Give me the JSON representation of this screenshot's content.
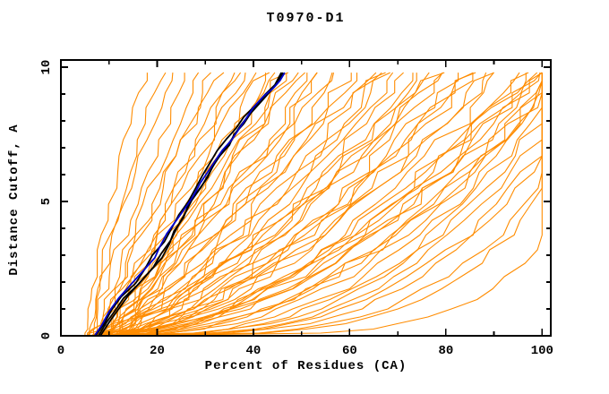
{
  "chart_data": {
    "type": "line",
    "title": "T0970-D1",
    "xlabel": "Percent of Residues (CA)",
    "ylabel": "Distance Cutoff, A",
    "xlim": [
      0,
      101.8
    ],
    "ylim": [
      0,
      10.27
    ],
    "x_major_ticks": [
      0,
      20,
      40,
      60,
      80,
      100
    ],
    "x_minor_ticks": [
      10,
      30,
      50,
      70,
      90
    ],
    "y_major_ticks": [
      0,
      5,
      10
    ],
    "y_minor_ticks": [
      1,
      2,
      3,
      4,
      6,
      7,
      8,
      9
    ],
    "grid": false,
    "legend": "none",
    "cutoff_plot_max": 9.8,
    "colors": {
      "server_models": "#ff8c00",
      "highlight_blue": "#0000cd",
      "highlight_black": "#000000",
      "axis": "#000000",
      "background": "#ffffff"
    },
    "sample_cutoffs": [
      0,
      0.1,
      0.25,
      0.45,
      0.7,
      1,
      1.35,
      1.75,
      2.2,
      2.7,
      3.2,
      3.75,
      4.3,
      4.9,
      5.5,
      6.1,
      6.7,
      7.3,
      7.9,
      8.5,
      9.05,
      9.5,
      9.8
    ],
    "series": [
      {
        "name": "highlight_black_model_1",
        "color": "#000000",
        "width": 1.8,
        "points": [
          [
            7.8,
            0
          ],
          [
            9.5,
            0.5
          ],
          [
            11.5,
            1
          ],
          [
            13,
            1.4
          ],
          [
            16,
            1.9
          ],
          [
            18.5,
            2.4
          ],
          [
            21,
            2.9
          ],
          [
            22.5,
            3.4
          ],
          [
            23.5,
            3.9
          ],
          [
            25.5,
            4.4
          ],
          [
            26.5,
            4.9
          ],
          [
            28.5,
            5.4
          ],
          [
            30.5,
            5.9
          ],
          [
            31.5,
            6.3
          ],
          [
            33,
            6.7
          ],
          [
            35,
            7.1
          ],
          [
            36,
            7.5
          ],
          [
            38,
            7.9
          ],
          [
            39.5,
            8.3
          ],
          [
            41.5,
            8.7
          ],
          [
            43.5,
            9.1
          ],
          [
            45,
            9.4
          ],
          [
            46,
            9.8
          ]
        ]
      },
      {
        "name": "highlight_black_model_2",
        "color": "#000000",
        "width": 1.8,
        "points": [
          [
            7.2,
            0
          ],
          [
            9,
            0.45
          ],
          [
            10.5,
            0.95
          ],
          [
            12.5,
            1.45
          ],
          [
            15.5,
            1.95
          ],
          [
            17.5,
            2.5
          ],
          [
            19,
            3
          ],
          [
            21.5,
            3.5
          ],
          [
            23,
            4
          ],
          [
            24.5,
            4.5
          ],
          [
            26.5,
            5
          ],
          [
            28,
            5.5
          ],
          [
            29.5,
            6
          ],
          [
            31,
            6.45
          ],
          [
            32.5,
            6.9
          ],
          [
            34.5,
            7.35
          ],
          [
            36.5,
            7.75
          ],
          [
            38,
            8.15
          ],
          [
            40.5,
            8.6
          ],
          [
            42.5,
            9
          ],
          [
            44.5,
            9.35
          ],
          [
            45.8,
            9.8
          ]
        ]
      },
      {
        "name": "highlight_black_model_3",
        "color": "#000000",
        "width": 1.8,
        "points": [
          [
            8.2,
            0
          ],
          [
            10.2,
            0.55
          ],
          [
            12.2,
            1.05
          ],
          [
            14,
            1.5
          ],
          [
            16.5,
            2
          ],
          [
            19.2,
            2.55
          ],
          [
            20.8,
            3.05
          ],
          [
            22.8,
            3.55
          ],
          [
            24.2,
            4.05
          ],
          [
            25.8,
            4.55
          ],
          [
            27.2,
            5.05
          ],
          [
            29.2,
            5.55
          ],
          [
            30.8,
            6.05
          ],
          [
            32.2,
            6.5
          ],
          [
            34,
            6.95
          ],
          [
            35.8,
            7.4
          ],
          [
            37.2,
            7.8
          ],
          [
            39,
            8.2
          ],
          [
            41,
            8.65
          ],
          [
            43,
            9.05
          ],
          [
            44.8,
            9.4
          ],
          [
            46.2,
            9.8
          ]
        ]
      },
      {
        "name": "highlight_blue_model",
        "color": "#0000cd",
        "width": 1.8,
        "points": [
          [
            7,
            0
          ],
          [
            8.5,
            0.4
          ],
          [
            10,
            0.9
          ],
          [
            12,
            1.4
          ],
          [
            14.5,
            1.9
          ],
          [
            17,
            2.4
          ],
          [
            19.5,
            2.9
          ],
          [
            20.5,
            3.3
          ],
          [
            22,
            3.8
          ],
          [
            24,
            4.3
          ],
          [
            26,
            4.8
          ],
          [
            27.5,
            5.2
          ],
          [
            29,
            5.7
          ],
          [
            30.5,
            6.1
          ],
          [
            32,
            6.5
          ],
          [
            33.5,
            6.9
          ],
          [
            35.5,
            7.3
          ],
          [
            37,
            7.7
          ],
          [
            38.5,
            8.1
          ],
          [
            40,
            8.5
          ],
          [
            42,
            8.9
          ],
          [
            44,
            9.2
          ],
          [
            45.5,
            9.5
          ],
          [
            46.5,
            9.8
          ]
        ]
      }
    ],
    "server_model_curves": {
      "color": "#ff8c00",
      "width": 1.1,
      "count": 64,
      "gen": [
        {
          "s": 5,
          "e": 18,
          "q": 1.35,
          "j": 0.9,
          "seed": 101
        },
        {
          "s": 5.5,
          "e": 21,
          "q": 1.25,
          "j": 1.0,
          "seed": 102
        },
        {
          "s": 5.8,
          "e": 23,
          "q": 1.15,
          "j": 1.0,
          "seed": 103
        },
        {
          "s": 6.2,
          "e": 26,
          "q": 1.1,
          "j": 1.1,
          "seed": 104
        },
        {
          "s": 6.8,
          "e": 28,
          "q": 1.05,
          "j": 1.2,
          "seed": 105
        },
        {
          "s": 7.4,
          "e": 31,
          "q": 1.0,
          "j": 1.2,
          "seed": 106
        },
        {
          "s": 8,
          "e": 33,
          "q": 1.1,
          "j": 1.3,
          "seed": 107
        },
        {
          "s": 8.6,
          "e": 35,
          "q": 0.95,
          "j": 1.3,
          "seed": 108
        },
        {
          "s": 9.2,
          "e": 38,
          "q": 1.0,
          "j": 1.4,
          "seed": 109
        },
        {
          "s": 9.8,
          "e": 40,
          "q": 1.05,
          "j": 1.2,
          "seed": 110
        },
        {
          "s": 10.4,
          "e": 43,
          "q": 0.95,
          "j": 1.4,
          "seed": 111
        },
        {
          "s": 11,
          "e": 45,
          "q": 1.0,
          "j": 1.3,
          "seed": 112
        },
        {
          "s": 6.5,
          "e": 36,
          "q": 0.9,
          "j": 1.5,
          "seed": 113
        },
        {
          "s": 7.8,
          "e": 42,
          "q": 0.92,
          "j": 1.5,
          "seed": 114
        },
        {
          "s": 6,
          "e": 46,
          "q": 0.85,
          "j": 1.8,
          "seed": 115
        },
        {
          "s": 7,
          "e": 48,
          "q": 0.8,
          "j": 1.8,
          "seed": 116
        },
        {
          "s": 8,
          "e": 50,
          "q": 0.9,
          "j": 1.8,
          "seed": 117
        },
        {
          "s": 9,
          "e": 52,
          "q": 0.78,
          "j": 2,
          "seed": 118
        },
        {
          "s": 10,
          "e": 54,
          "q": 0.85,
          "j": 1.8,
          "seed": 119
        },
        {
          "s": 11,
          "e": 56,
          "q": 0.75,
          "j": 2,
          "seed": 120
        },
        {
          "s": 12,
          "e": 58,
          "q": 0.82,
          "j": 1.8,
          "seed": 121
        },
        {
          "s": 6.5,
          "e": 60,
          "q": 0.8,
          "j": 2,
          "seed": 122
        },
        {
          "s": 7.5,
          "e": 62,
          "q": 0.72,
          "j": 2,
          "seed": 123
        },
        {
          "s": 8.5,
          "e": 64,
          "q": 0.85,
          "j": 1.8,
          "seed": 124
        },
        {
          "s": 9.5,
          "e": 66,
          "q": 0.7,
          "j": 2,
          "seed": 125
        },
        {
          "s": 10.5,
          "e": 68,
          "q": 0.8,
          "j": 2,
          "seed": 126
        },
        {
          "s": 11.5,
          "e": 70,
          "q": 0.75,
          "j": 1.8,
          "seed": 127
        },
        {
          "s": 12.5,
          "e": 47,
          "q": 0.95,
          "j": 1.8,
          "seed": 128
        },
        {
          "s": 5.5,
          "e": 55,
          "q": 0.88,
          "j": 2,
          "seed": 129
        },
        {
          "s": 6.8,
          "e": 65,
          "q": 0.68,
          "j": 2,
          "seed": 130
        },
        {
          "s": 7,
          "e": 72,
          "q": 0.65,
          "j": 2.2,
          "seed": 131
        },
        {
          "s": 8,
          "e": 74,
          "q": 0.7,
          "j": 2,
          "seed": 132
        },
        {
          "s": 9,
          "e": 76,
          "q": 0.62,
          "j": 2.2,
          "seed": 133
        },
        {
          "s": 10,
          "e": 78,
          "q": 0.68,
          "j": 2,
          "seed": 134
        },
        {
          "s": 11,
          "e": 80,
          "q": 0.6,
          "j": 2.2,
          "seed": 135
        },
        {
          "s": 12,
          "e": 82,
          "q": 0.66,
          "j": 2,
          "seed": 136
        },
        {
          "s": 6.5,
          "e": 84,
          "q": 0.58,
          "j": 2.2,
          "seed": 137
        },
        {
          "s": 7.5,
          "e": 86,
          "q": 0.64,
          "j": 2,
          "seed": 138
        },
        {
          "s": 8.5,
          "e": 88,
          "q": 0.56,
          "j": 2.2,
          "seed": 139
        },
        {
          "s": 9.5,
          "e": 90,
          "q": 0.62,
          "j": 2,
          "seed": 140
        },
        {
          "s": 10.5,
          "e": 92,
          "q": 0.55,
          "j": 2.2,
          "seed": 141
        },
        {
          "s": 11.5,
          "e": 75,
          "q": 0.72,
          "j": 2,
          "seed": 142
        },
        {
          "s": 12.2,
          "e": 85,
          "q": 0.6,
          "j": 2.2,
          "seed": 143
        },
        {
          "s": 6.2,
          "e": 79,
          "q": 0.7,
          "j": 2,
          "seed": 144
        },
        {
          "s": 7,
          "e": 95,
          "q": 0.52,
          "j": 2.2,
          "seed": 145
        },
        {
          "s": 8,
          "e": 97,
          "q": 0.55,
          "j": 2,
          "seed": 146
        },
        {
          "s": 9,
          "e": 99,
          "q": 0.5,
          "j": 2.2,
          "seed": 147
        },
        {
          "s": 10,
          "e": 101,
          "q": 0.53,
          "j": 2,
          "seed": 148
        },
        {
          "s": 11,
          "e": 103,
          "q": 0.48,
          "j": 2.2,
          "seed": 149
        },
        {
          "s": 12,
          "e": 98,
          "q": 0.56,
          "j": 2,
          "seed": 150
        },
        {
          "s": 8.5,
          "e": 102,
          "q": 0.45,
          "j": 2.2,
          "seed": 151
        },
        {
          "s": 9.5,
          "e": 96,
          "q": 0.58,
          "j": 2,
          "seed": 152
        },
        {
          "s": 7.2,
          "e": 100,
          "q": 0.5,
          "j": 2.2,
          "seed": 153
        },
        {
          "s": 10.8,
          "e": 104,
          "q": 0.46,
          "j": 2,
          "seed": 154
        },
        {
          "s": 8,
          "e": 102,
          "q": 0.4,
          "j": 1.6,
          "seed": 155
        },
        {
          "s": 9,
          "e": 105,
          "q": 0.36,
          "j": 1.6,
          "seed": 156
        },
        {
          "s": 10,
          "e": 108,
          "q": 0.33,
          "j": 1.5,
          "seed": 157
        },
        {
          "s": 11,
          "e": 111,
          "q": 0.3,
          "j": 1.5,
          "seed": 158
        },
        {
          "s": 12,
          "e": 114,
          "q": 0.27,
          "j": 1.4,
          "seed": 159
        },
        {
          "s": 7.5,
          "e": 106,
          "q": 0.34,
          "j": 1.6,
          "seed": 160
        },
        {
          "s": 8.8,
          "e": 116,
          "q": 0.25,
          "j": 1.4,
          "seed": 161
        },
        {
          "s": 10.5,
          "e": 103,
          "q": 0.38,
          "j": 1.6,
          "seed": 162
        },
        {
          "s": 6.8,
          "e": 110,
          "q": 0.3,
          "j": 1.5,
          "seed": 163
        },
        {
          "s": 9.8,
          "e": 122,
          "q": 0.2,
          "j": 1.3,
          "seed": 164
        }
      ]
    }
  }
}
